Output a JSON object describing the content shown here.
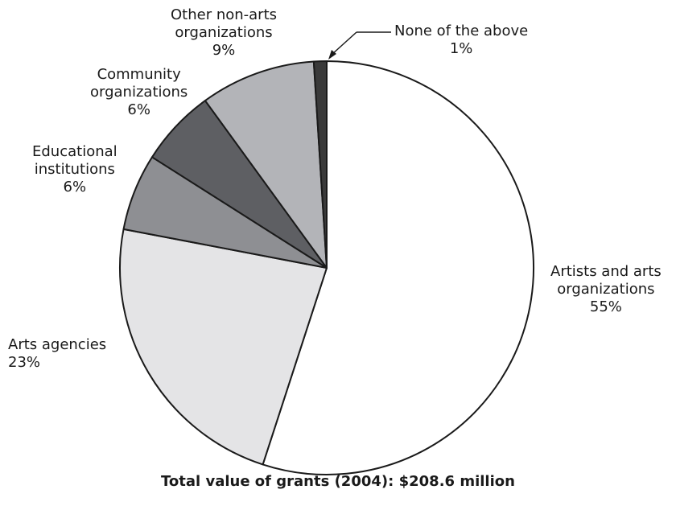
{
  "chart_data": {
    "type": "pie",
    "caption": "Total value of grants (2004):  $208.6 million",
    "slices": [
      {
        "key": "artists",
        "label_lines": [
          "Artists and arts",
          "organizations"
        ],
        "value_text": "55%",
        "value": 55,
        "color": "#ffffff"
      },
      {
        "key": "agencies",
        "label_lines": [
          "Arts agencies"
        ],
        "value_text": "23%",
        "value": 23,
        "color": "#e4e4e6"
      },
      {
        "key": "educational",
        "label_lines": [
          "Educational",
          "institutions"
        ],
        "value_text": "6%",
        "value": 6,
        "color": "#8e8f93"
      },
      {
        "key": "community",
        "label_lines": [
          "Community",
          "organizations"
        ],
        "value_text": "6%",
        "value": 6,
        "color": "#5e5f63"
      },
      {
        "key": "nonarts",
        "label_lines": [
          "Other non-arts",
          "organizations"
        ],
        "value_text": "9%",
        "value": 9,
        "color": "#b3b4b8"
      },
      {
        "key": "none",
        "label_lines": [
          "None of the above"
        ],
        "value_text": "1%",
        "value": 1,
        "color": "#3a3a3a"
      }
    ]
  }
}
